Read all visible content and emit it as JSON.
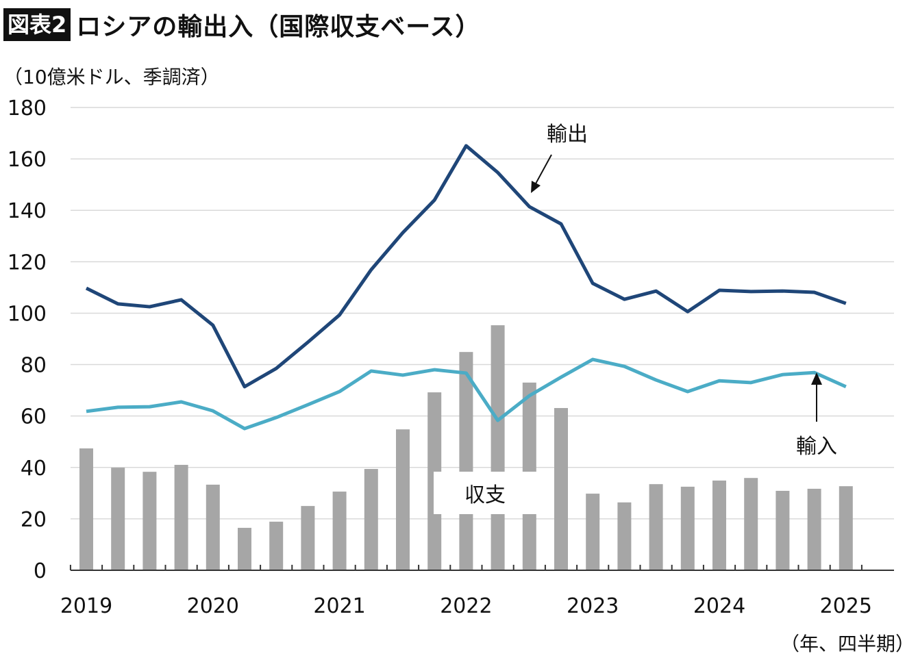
{
  "header": {
    "badge": "図表2",
    "title": "ロシアの輸出入（国際収支ベース）"
  },
  "chart_data": {
    "type": "bar+line",
    "title": "ロシアの輸出入（国際収支ベース）",
    "ylabel": "（10億米ドル、季調済）",
    "xlabel": "（年、四半期）",
    "ylim": [
      0,
      180
    ],
    "yticks": [
      0,
      20,
      40,
      60,
      80,
      100,
      120,
      140,
      160,
      180
    ],
    "year_labels": [
      "2019",
      "2020",
      "2021",
      "2022",
      "2023",
      "2024",
      "2025"
    ],
    "grid": true,
    "x": [
      "2019Q1",
      "2019Q2",
      "2019Q3",
      "2019Q4",
      "2020Q1",
      "2020Q2",
      "2020Q3",
      "2020Q4",
      "2021Q1",
      "2021Q2",
      "2021Q3",
      "2021Q4",
      "2022Q1",
      "2022Q2",
      "2022Q3",
      "2022Q4",
      "2023Q1",
      "2023Q2",
      "2023Q3",
      "2023Q4",
      "2024Q1",
      "2024Q2",
      "2024Q3",
      "2024Q4",
      "2025Q1"
    ],
    "series": [
      {
        "name": "輸出",
        "type": "line",
        "color": "#1f4678",
        "values": [
          109.7,
          103.6,
          102.5,
          105.2,
          95.3,
          71.4,
          78.5,
          88.7,
          99.3,
          116.9,
          131.3,
          144.0,
          165.1,
          154.7,
          141.4,
          134.7,
          111.6,
          105.4,
          108.6,
          100.6,
          108.9,
          108.4,
          108.6,
          108.1,
          103.8
        ]
      },
      {
        "name": "輸入",
        "type": "line",
        "color": "#4bacc6",
        "values": [
          61.8,
          63.4,
          63.6,
          65.5,
          62.0,
          55.1,
          59.4,
          64.4,
          69.5,
          77.5,
          75.9,
          78.0,
          76.7,
          58.3,
          67.9,
          75.1,
          82.0,
          79.3,
          74.0,
          69.5,
          73.7,
          73.0,
          76.1,
          76.9,
          71.4
        ]
      },
      {
        "name": "収支",
        "type": "bar",
        "color": "#a6a6a6",
        "values": [
          47.4,
          39.9,
          38.3,
          41.0,
          33.3,
          16.5,
          18.9,
          25.0,
          30.6,
          39.4,
          54.8,
          69.2,
          84.9,
          95.3,
          73.0,
          63.1,
          29.8,
          26.4,
          33.5,
          32.5,
          34.9,
          35.9,
          30.9,
          31.7,
          32.7
        ]
      }
    ]
  }
}
